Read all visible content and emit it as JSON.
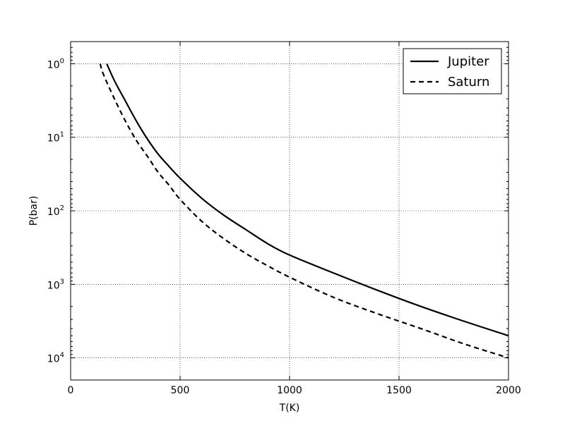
{
  "chart_data": {
    "type": "line",
    "title": "",
    "xlabel": "T(K)",
    "ylabel": "P(bar)",
    "xlim": [
      0,
      2000
    ],
    "ylim": [
      0.5,
      20000
    ],
    "y_scale": "log",
    "y_inverted": true,
    "grid": true,
    "legend_position": "top-right",
    "x_ticks": [
      "0",
      "500",
      "1000",
      "1500",
      "2000"
    ],
    "y_ticks": [
      {
        "base": "10",
        "exp": "0",
        "value": 1
      },
      {
        "base": "10",
        "exp": "1",
        "value": 10
      },
      {
        "base": "10",
        "exp": "2",
        "value": 100
      },
      {
        "base": "10",
        "exp": "3",
        "value": 1000
      },
      {
        "base": "10",
        "exp": "4",
        "value": 10000
      }
    ],
    "series": [
      {
        "name": "Jupiter",
        "line_style": "solid",
        "color": "#000000",
        "x": [
          165,
          200,
          250,
          300,
          350,
          400,
          450,
          500,
          600,
          700,
          800,
          900,
          1000,
          1200,
          1400,
          1600,
          1800,
          2000
        ],
        "y": [
          1,
          1.7,
          3.2,
          6,
          10.5,
          17,
          25,
          36,
          68,
          115,
          180,
          280,
          400,
          700,
          1200,
          2000,
          3200,
          5000
        ]
      },
      {
        "name": "Saturn",
        "line_style": "dashed",
        "color": "#000000",
        "x": [
          135,
          150,
          200,
          250,
          300,
          350,
          400,
          450,
          500,
          600,
          700,
          800,
          900,
          1000,
          1200,
          1400,
          1600,
          1800,
          2000
        ],
        "y": [
          1,
          1.4,
          3,
          6,
          11,
          18,
          30,
          45,
          70,
          140,
          240,
          380,
          560,
          800,
          1500,
          2500,
          4000,
          6500,
          10000
        ]
      }
    ]
  }
}
